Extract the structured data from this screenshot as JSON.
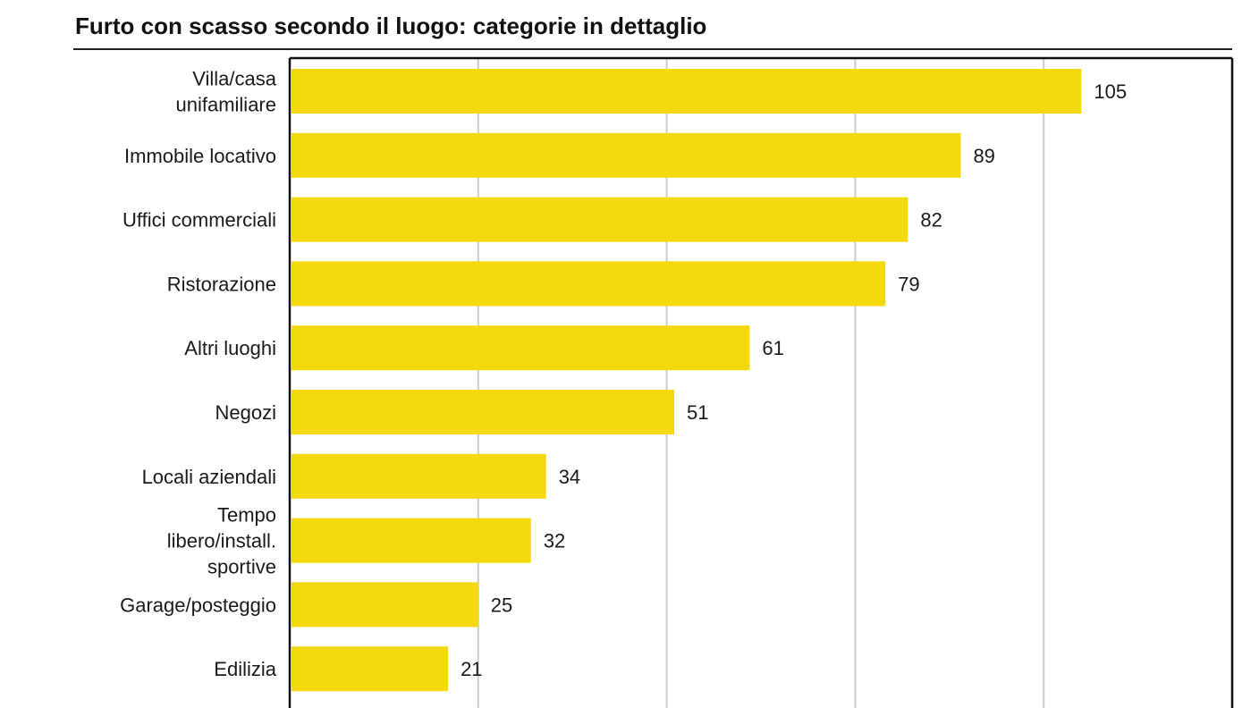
{
  "chart_data": {
    "type": "bar",
    "orientation": "horizontal",
    "title": "Furto con scasso secondo il luogo: categorie in dettaglio",
    "categories": [
      "Villa/casa unifamiliare",
      "Immobile locativo",
      "Uffici commerciali",
      "Ristorazione",
      "Altri luoghi",
      "Negozi",
      "Locali aziendali",
      "Tempo libero/install. sportive",
      "Garage/posteggio",
      "Edilizia"
    ],
    "category_lines": [
      [
        "Villa/casa",
        "unifamiliare"
      ],
      [
        "Immobile locativo"
      ],
      [
        "Uffici commerciali"
      ],
      [
        "Ristorazione"
      ],
      [
        "Altri luoghi"
      ],
      [
        "Negozi"
      ],
      [
        "Locali aziendali"
      ],
      [
        "Tempo",
        "libero/install.",
        "sportive"
      ],
      [
        "Garage/posteggio"
      ],
      [
        "Edilizia"
      ]
    ],
    "values": [
      105,
      89,
      82,
      79,
      61,
      51,
      34,
      32,
      25,
      21
    ],
    "value_labels": [
      "105",
      "89",
      "82",
      "79",
      "61",
      "51",
      "34",
      "32",
      "25",
      "21"
    ],
    "xlim": [
      0,
      125
    ],
    "gridlines": [
      25,
      50,
      75,
      100
    ],
    "grid": true,
    "bar_color": "#f5d90f",
    "grid_color": "#cccccc",
    "axis_color": "#111111",
    "xlabel": "",
    "ylabel": ""
  }
}
